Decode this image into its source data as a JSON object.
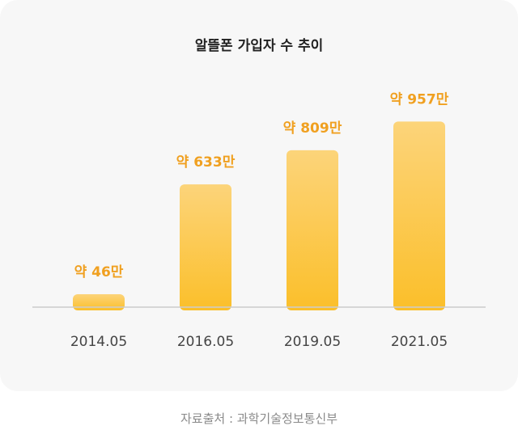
{
  "chart_data": {
    "type": "bar",
    "title": "알뜰폰 가입자 수 추이",
    "categories": [
      "2014.05",
      "2016.05",
      "2019.05",
      "2021.05"
    ],
    "values": [
      46,
      633,
      809,
      957
    ],
    "data_labels": [
      "약 46만",
      "약 633만",
      "약 809만",
      "약 957만"
    ],
    "unit": "만",
    "ylim": [
      0,
      1000
    ],
    "grid": false,
    "legend": "none",
    "colors": {
      "bar_top": "#fcd47a",
      "bar_bottom": "#fbbf2a",
      "label": "#f0a020",
      "baseline": "#cccccc"
    }
  },
  "source": "자료출처 : 과학기술정보통신부"
}
